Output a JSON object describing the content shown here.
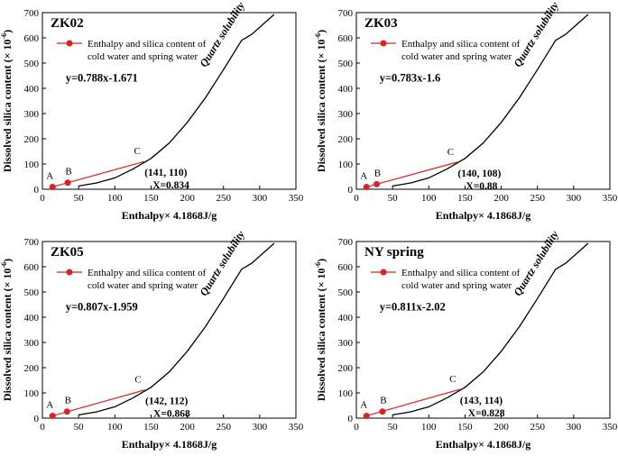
{
  "figure": {
    "x_axis_label": "Enthalpy× 4.1868J/g",
    "y_axis_label_main": "Dissolved silica content (× 10",
    "y_axis_label_exp": "-6",
    "y_axis_label_end": ")",
    "legend_label_line1": "Enthalpy and silica content of",
    "legend_label_line2": "cold water and spring water",
    "curve_label": "Quartz solubility",
    "colors": {
      "mixing_line": "#e02020",
      "curve": "#000000"
    }
  },
  "chart_data": [
    {
      "type": "line",
      "title": "ZK02",
      "xlabel": "Enthalpy× 4.1868J/g",
      "ylabel": "Dissolved silica content (× 10-6)",
      "xlim": [
        0,
        350
      ],
      "ylim": [
        0,
        700
      ],
      "xticks": [
        0,
        50,
        100,
        150,
        200,
        250,
        300,
        350
      ],
      "yticks": [
        0,
        100,
        200,
        300,
        400,
        500,
        600,
        700
      ],
      "quartz_solubility": {
        "x": [
          50,
          75,
          100,
          125,
          150,
          175,
          200,
          225,
          250,
          275,
          289,
          320
        ],
        "y": [
          13,
          25,
          45,
          80,
          122,
          183,
          265,
          362,
          474,
          590,
          614,
          693
        ]
      },
      "mixing_line": {
        "x": [
          14,
          35,
          141
        ],
        "y": [
          9,
          26,
          110
        ],
        "labels": [
          "A",
          "B",
          "C"
        ]
      },
      "equation": "y=0.788x-1.671",
      "intersection_label": "(141, 110)",
      "mixing_ratio_label": "X=0.834"
    },
    {
      "type": "line",
      "title": "ZK03",
      "xlabel": "Enthalpy× 4.1868J/g",
      "ylabel": "Dissolved silica content (× 10-6)",
      "xlim": [
        0,
        350
      ],
      "ylim": [
        0,
        700
      ],
      "xticks": [
        0,
        50,
        100,
        150,
        200,
        250,
        300,
        350
      ],
      "yticks": [
        0,
        100,
        200,
        300,
        400,
        500,
        600,
        700
      ],
      "quartz_solubility": {
        "x": [
          50,
          75,
          100,
          125,
          150,
          175,
          200,
          225,
          250,
          275,
          289,
          320
        ],
        "y": [
          13,
          25,
          45,
          80,
          122,
          183,
          265,
          362,
          474,
          590,
          614,
          693
        ]
      },
      "mixing_line": {
        "x": [
          14,
          28,
          140
        ],
        "y": [
          9,
          20,
          108
        ],
        "labels": [
          "A",
          "B",
          "C"
        ]
      },
      "equation": "y=0.783x-1.6",
      "intersection_label": "(140, 108)",
      "mixing_ratio_label": "X=0.88"
    },
    {
      "type": "line",
      "title": "ZK05",
      "xlabel": "Enthalpy× 4.1868J/g",
      "ylabel": "Dissolved silica content (× 10-6)",
      "xlim": [
        0,
        350
      ],
      "ylim": [
        0,
        700
      ],
      "xticks": [
        0,
        50,
        100,
        150,
        200,
        250,
        300,
        350
      ],
      "yticks": [
        0,
        100,
        200,
        300,
        400,
        500,
        600,
        700
      ],
      "quartz_solubility": {
        "x": [
          50,
          75,
          100,
          125,
          150,
          175,
          200,
          225,
          250,
          275,
          289,
          320
        ],
        "y": [
          13,
          25,
          45,
          80,
          122,
          183,
          265,
          362,
          474,
          590,
          614,
          693
        ]
      },
      "mixing_line": {
        "x": [
          14,
          34,
          142
        ],
        "y": [
          9,
          26,
          112
        ],
        "labels": [
          "A",
          "B",
          "C"
        ]
      },
      "equation": "y=0.807x-1.959",
      "intersection_label": "(142, 112)",
      "mixing_ratio_label": "X=0.868"
    },
    {
      "type": "line",
      "title": "NY spring",
      "xlabel": "Enthalpy× 4.1868J/g",
      "ylabel": "Dissolved silica content (× 10-6)",
      "xlim": [
        0,
        350
      ],
      "ylim": [
        0,
        700
      ],
      "xticks": [
        0,
        50,
        100,
        150,
        200,
        250,
        300,
        350
      ],
      "yticks": [
        0,
        100,
        200,
        300,
        400,
        500,
        600,
        700
      ],
      "quartz_solubility": {
        "x": [
          50,
          75,
          100,
          125,
          150,
          175,
          200,
          225,
          250,
          275,
          289,
          320
        ],
        "y": [
          13,
          25,
          45,
          80,
          122,
          183,
          265,
          362,
          474,
          590,
          614,
          693
        ]
      },
      "mixing_line": {
        "x": [
          14,
          36,
          143
        ],
        "y": [
          9,
          26,
          114
        ],
        "labels": [
          "A",
          "B",
          "C"
        ]
      },
      "equation": "y=0.811x-2.02",
      "intersection_label": "(143, 114)",
      "mixing_ratio_label": "X=0.828"
    }
  ]
}
